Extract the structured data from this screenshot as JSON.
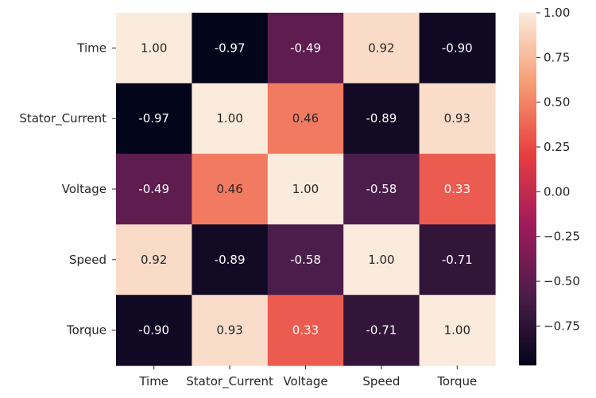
{
  "chart_data": {
    "type": "heatmap",
    "title": "",
    "xlabel": "",
    "ylabel": "",
    "x_labels": [
      "Time",
      "Stator_Current",
      "Voltage",
      "Speed",
      "Torque"
    ],
    "y_labels": [
      "Time",
      "Stator_Current",
      "Voltage",
      "Speed",
      "Torque"
    ],
    "matrix": [
      [
        1.0,
        -0.97,
        -0.49,
        0.92,
        -0.9
      ],
      [
        -0.97,
        1.0,
        0.46,
        -0.89,
        0.93
      ],
      [
        -0.49,
        0.46,
        1.0,
        -0.58,
        0.33
      ],
      [
        0.92,
        -0.89,
        -0.58,
        1.0,
        -0.71
      ],
      [
        -0.9,
        0.93,
        0.33,
        -0.71,
        1.0
      ]
    ],
    "cell_labels": [
      [
        "1.00",
        "-0.97",
        "-0.49",
        "0.92",
        "-0.90"
      ],
      [
        "-0.97",
        "1.00",
        "0.46",
        "-0.89",
        "0.93"
      ],
      [
        "-0.49",
        "0.46",
        "1.00",
        "-0.58",
        "0.33"
      ],
      [
        "0.92",
        "-0.89",
        "-0.58",
        "1.00",
        "-0.71"
      ],
      [
        "-0.90",
        "0.93",
        "0.33",
        "-0.71",
        "1.00"
      ]
    ],
    "colormap": "rocket",
    "colormap_stops": [
      "#03051a",
      "#4c1d4b",
      "#a11a5b",
      "#e83f3f",
      "#f69c73",
      "#faebdd"
    ],
    "colorbar": {
      "vmin": -0.97,
      "vmax": 1.0,
      "ticks": [
        1.0,
        0.75,
        0.5,
        0.25,
        0.0,
        -0.25,
        -0.5,
        -0.75
      ],
      "tick_labels": [
        "1.00",
        "0.75",
        "0.50",
        "0.25",
        "0.00",
        "−0.25",
        "−0.50",
        "−0.75"
      ],
      "placement": "right"
    },
    "grid": false
  }
}
